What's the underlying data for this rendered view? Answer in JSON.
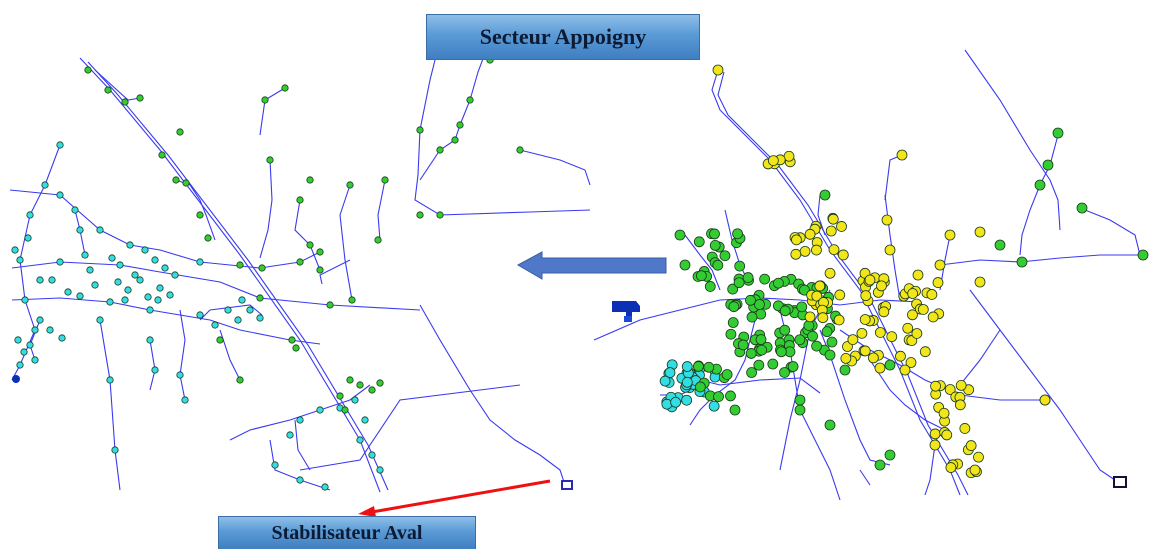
{
  "labels": {
    "sector_title": "Secteur Appoigny",
    "stabilizer": "Stabilisateur Aval"
  },
  "colors": {
    "pipe": "#3a3af0",
    "node_cyan": "#33dde6",
    "node_green": "#33cc33",
    "node_yellow": "#f2e61a",
    "node_outline": "#1a3a1a",
    "arrow_blue": "#4f78c8",
    "arrow_red": "#ee1111",
    "tank": "#0b30b5"
  },
  "icons": {
    "direction_arrow": "left-arrow-icon",
    "pointer_arrow": "red-arrow-icon",
    "tank": "reservoir-icon"
  }
}
